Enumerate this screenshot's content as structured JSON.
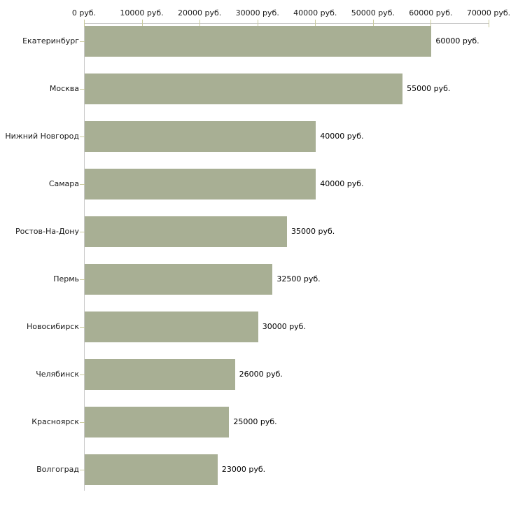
{
  "chart_data": {
    "type": "bar",
    "orientation": "horizontal",
    "title": "",
    "xlabel": "",
    "ylabel": "",
    "unit": "руб.",
    "categories": [
      "Екатеринбург",
      "Москва",
      "Нижний Новгород",
      "Самара",
      "Ростов-На-Дону",
      "Пермь",
      "Новосибирск",
      "Челябинск",
      "Красноярск",
      "Волгоград"
    ],
    "values": [
      60000,
      55000,
      40000,
      40000,
      35000,
      32500,
      30000,
      26000,
      25000,
      23000
    ],
    "value_labels": [
      "60000 руб.",
      "55000 руб.",
      "40000 руб.",
      "40000 руб.",
      "35000 руб.",
      "32500 руб.",
      "30000 руб.",
      "26000 руб.",
      "25000 руб.",
      "23000 руб."
    ],
    "x_ticks": [
      0,
      10000,
      20000,
      30000,
      40000,
      50000,
      60000,
      70000
    ],
    "x_tick_labels": [
      "0 руб.",
      "10000 руб.",
      "20000 руб.",
      "30000 руб.",
      "40000 руб.",
      "50000 руб.",
      "60000 руб.",
      "70000 руб."
    ],
    "xlim": [
      0,
      70000
    ],
    "grid": false,
    "legend": false,
    "colors": {
      "bar_fill": "#a8af94",
      "axis_line": "#c8c8c8",
      "tick_mark": "#c9ca9c",
      "text": "#1a1a1a"
    }
  }
}
